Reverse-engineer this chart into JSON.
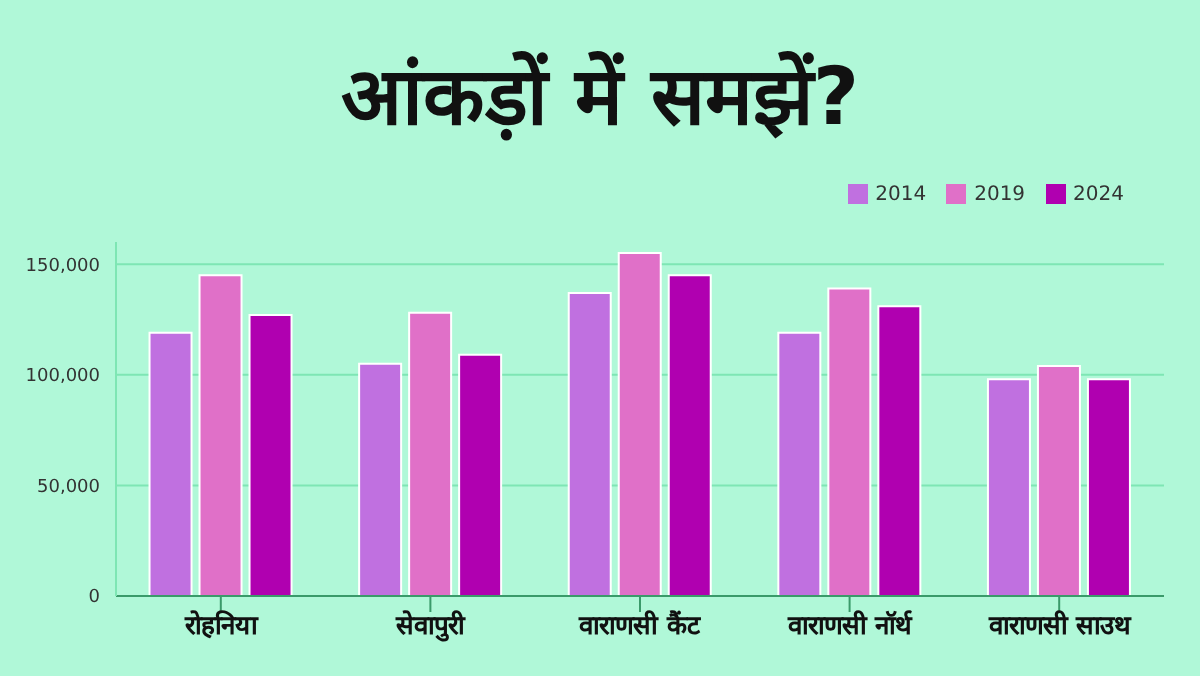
{
  "chart_data": {
    "type": "bar",
    "title": "आंकड़ों में समझें?",
    "categories": [
      "रोहनिया",
      "सेवापुरी",
      "वाराणसी कैंट",
      "वाराणसी नॉर्थ",
      "वाराणसी साउथ"
    ],
    "series": [
      {
        "name": "2014",
        "color": "#c070e0",
        "values": [
          119000,
          105000,
          137000,
          119000,
          98000
        ]
      },
      {
        "name": "2019",
        "color": "#e070c8",
        "values": [
          145000,
          128000,
          155000,
          139000,
          104000
        ]
      },
      {
        "name": "2024",
        "color": "#b000b0",
        "values": [
          127000,
          109000,
          145000,
          131000,
          98000
        ]
      }
    ],
    "ylim": [
      0,
      160000
    ],
    "yticks": [
      0,
      {
        "value": 50000,
        "label": "50,000"
      },
      {
        "value": 100000,
        "label": "100,000"
      },
      {
        "value": 150000,
        "label": "150,000"
      }
    ],
    "grid": "y",
    "legend": "top right"
  }
}
